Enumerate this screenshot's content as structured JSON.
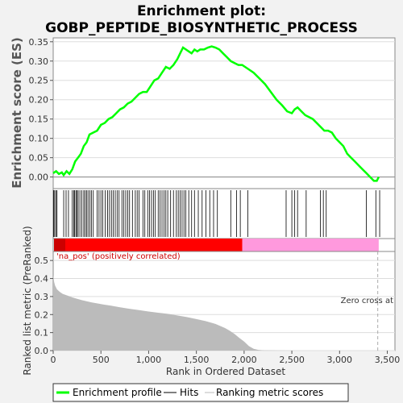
{
  "chart_data": {
    "type": "line",
    "title_line1": "Enrichment plot:",
    "title_line2": "GOBP_PEPTIDE_BIOSYNTHETIC_PROCESS",
    "es_panel": {
      "ylabel": "Enrichment score (ES)",
      "ylim": [
        -0.03,
        0.36
      ],
      "yticks": [
        "0.00",
        "0.05",
        "0.10",
        "0.15",
        "0.20",
        "0.25",
        "0.30",
        "0.35"
      ],
      "ytick_values": [
        0.0,
        0.05,
        0.1,
        0.15,
        0.2,
        0.25,
        0.3,
        0.35
      ],
      "series": [
        {
          "name": "Enrichment profile",
          "color": "#00ff00",
          "x": [
            0,
            30,
            60,
            90,
            110,
            140,
            170,
            200,
            230,
            260,
            290,
            320,
            350,
            380,
            420,
            460,
            500,
            540,
            580,
            620,
            660,
            700,
            740,
            780,
            820,
            860,
            900,
            940,
            980,
            1020,
            1060,
            1100,
            1140,
            1180,
            1220,
            1260,
            1300,
            1330,
            1360,
            1390,
            1420,
            1450,
            1480,
            1510,
            1540,
            1580,
            1620,
            1660,
            1700,
            1740,
            1780,
            1820,
            1860,
            1900,
            1940,
            1980,
            2040,
            2100,
            2160,
            2220,
            2280,
            2340,
            2400,
            2450,
            2500,
            2530,
            2560,
            2600,
            2640,
            2680,
            2720,
            2760,
            2800,
            2840,
            2880,
            2920,
            2960,
            3000,
            3040,
            3080,
            3120,
            3160,
            3200,
            3240,
            3280,
            3320,
            3360,
            3390,
            3410
          ],
          "y": [
            0.01,
            0.015,
            0.008,
            0.012,
            0.005,
            0.015,
            0.008,
            0.02,
            0.04,
            0.05,
            0.06,
            0.08,
            0.09,
            0.11,
            0.115,
            0.12,
            0.135,
            0.14,
            0.15,
            0.155,
            0.165,
            0.175,
            0.18,
            0.19,
            0.195,
            0.205,
            0.215,
            0.22,
            0.22,
            0.235,
            0.25,
            0.255,
            0.27,
            0.285,
            0.28,
            0.29,
            0.305,
            0.32,
            0.335,
            0.33,
            0.325,
            0.32,
            0.33,
            0.325,
            0.33,
            0.33,
            0.335,
            0.338,
            0.335,
            0.33,
            0.32,
            0.31,
            0.3,
            0.295,
            0.29,
            0.29,
            0.28,
            0.27,
            0.255,
            0.24,
            0.22,
            0.2,
            0.185,
            0.17,
            0.165,
            0.175,
            0.18,
            0.17,
            0.16,
            0.155,
            0.15,
            0.14,
            0.13,
            0.12,
            0.12,
            0.115,
            0.1,
            0.09,
            0.08,
            0.06,
            0.05,
            0.04,
            0.03,
            0.02,
            0.01,
            0.0,
            -0.01,
            -0.01,
            0.0
          ]
        }
      ]
    },
    "hits": {
      "name": "Hits",
      "x": [
        5,
        15,
        28,
        40,
        110,
        135,
        160,
        200,
        215,
        225,
        238,
        250,
        262,
        280,
        300,
        320,
        335,
        350,
        365,
        385,
        400,
        420,
        460,
        480,
        500,
        520,
        545,
        570,
        590,
        610,
        630,
        650,
        670,
        690,
        720,
        740,
        760,
        780,
        800,
        830,
        860,
        880,
        900,
        940,
        960,
        990,
        1010,
        1030,
        1050,
        1070,
        1100,
        1120,
        1140,
        1160,
        1180,
        1200,
        1230,
        1260,
        1290,
        1310,
        1330,
        1350,
        1370,
        1390,
        1420,
        1450,
        1480,
        1520,
        1560,
        1600,
        1640,
        1680,
        1720,
        1860,
        1920,
        1960,
        2040,
        2440,
        2500,
        2530,
        2560,
        2650,
        2800,
        2830,
        2860,
        3280,
        3380,
        3420
      ]
    },
    "ranked_list": {
      "ylabel": "Ranked list metric (PreRanked)",
      "ylim": [
        0,
        0.55
      ],
      "yticks": [
        "0.0",
        "0.1",
        "0.2",
        "0.3",
        "0.4",
        "0.5"
      ],
      "ytick_values": [
        0.0,
        0.1,
        0.2,
        0.3,
        0.4,
        0.5
      ],
      "x": [
        0,
        10,
        20,
        40,
        70,
        100,
        150,
        200,
        300,
        400,
        500,
        600,
        700,
        800,
        900,
        1000,
        1100,
        1200,
        1300,
        1400,
        1500,
        1600,
        1700,
        1800,
        1850,
        1900,
        1950,
        2000,
        2050,
        2100,
        2150,
        2200,
        2300,
        2500,
        3000,
        3500
      ],
      "y": [
        0.42,
        0.38,
        0.36,
        0.34,
        0.325,
        0.315,
        0.305,
        0.295,
        0.28,
        0.268,
        0.258,
        0.25,
        0.24,
        0.232,
        0.225,
        0.217,
        0.21,
        0.204,
        0.195,
        0.186,
        0.175,
        0.163,
        0.148,
        0.125,
        0.11,
        0.092,
        0.07,
        0.05,
        0.025,
        0.01,
        0.004,
        0.002,
        0.001,
        0.0,
        0.0,
        0.0
      ],
      "color": "#bbbbbb",
      "zero_cross_x": 3400,
      "zero_cross_label": "Zero cross at",
      "positive_label": "'na_pos' (positively correlated)"
    },
    "x_axis": {
      "xlabel": "Rank in Ordered Dataset",
      "xlim": [
        0,
        3580
      ],
      "xticks": [
        "0",
        "500",
        "1,000",
        "1,500",
        "2,000",
        "2,500",
        "3,000",
        "3,500"
      ],
      "xtick_values": [
        0,
        500,
        1000,
        1500,
        2000,
        2500,
        3000,
        3500
      ]
    },
    "gradient_bar": {
      "split_x": 1980,
      "end_x": 3410,
      "left_color": "#ff0000",
      "right_color": "#ff99dd"
    },
    "legend": {
      "placement": "bottom",
      "items": [
        {
          "label": "Enrichment profile",
          "color": "#00ff00",
          "kind": "thick-line"
        },
        {
          "label": "Hits",
          "color": "#000000",
          "kind": "line"
        },
        {
          "label": "Ranking metric scores",
          "color": "#bbbbbb",
          "kind": "line"
        }
      ]
    }
  }
}
